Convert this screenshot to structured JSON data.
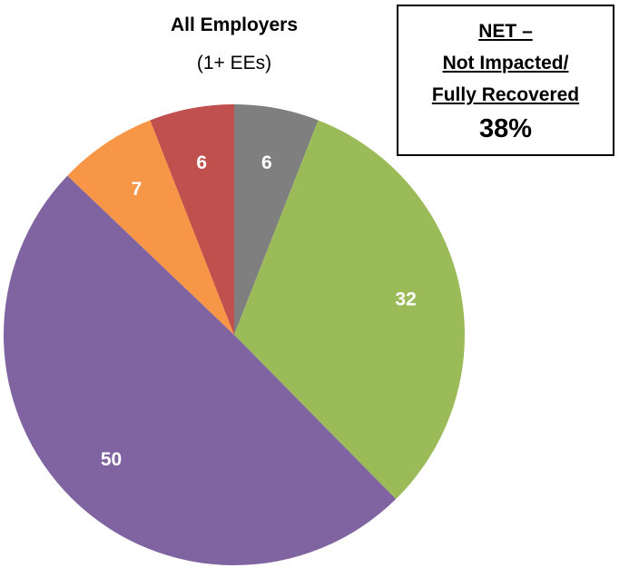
{
  "chart_data": {
    "type": "pie",
    "title": "All Employers",
    "subtitle": "(1+ EEs)",
    "values": [
      6,
      32,
      50,
      7,
      6
    ],
    "colors": [
      "#7f7f7f",
      "#9bbb59",
      "#8064a2",
      "#f79646",
      "#c0504d"
    ],
    "labels": [
      "6",
      "32",
      "50",
      "7",
      "6"
    ],
    "start_angle_deg": 0,
    "direction": "clockwise",
    "legend": "none"
  },
  "callout": {
    "line1": "NET –",
    "line2": "Not Impacted/",
    "line3": "Fully Recovered",
    "value": "38%"
  }
}
